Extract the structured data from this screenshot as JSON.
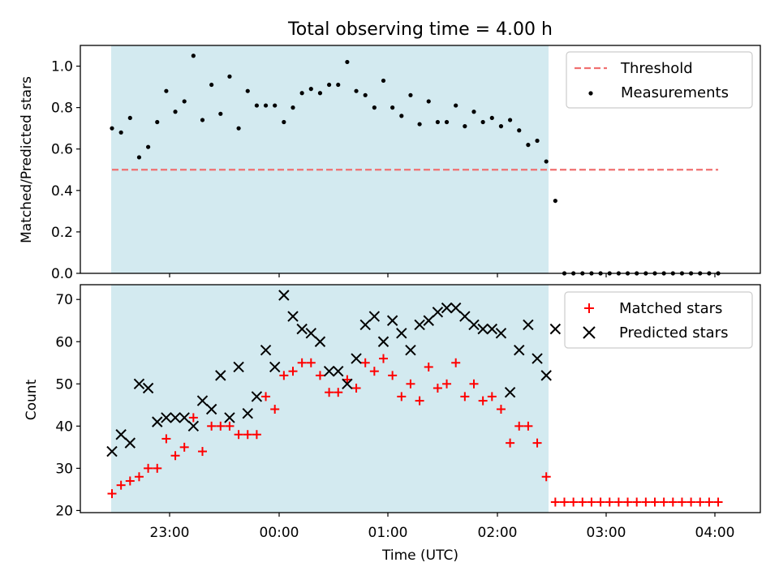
{
  "title": "Total observing time = 4.00 h",
  "shade_color": "#d3eaf0",
  "chart_data": [
    {
      "type": "scatter",
      "ylabel": "Matched/Predicted stars",
      "ylim": [
        0,
        1.1
      ],
      "yticks": [
        "0.0",
        "0.2",
        "0.4",
        "0.6",
        "0.8",
        "1.0"
      ],
      "threshold": {
        "name": "Threshold",
        "value": 0.5,
        "color": "#f07070",
        "style": "dashed"
      },
      "series": [
        {
          "name": "Measurements",
          "color": "#000000",
          "marker": "dot",
          "values": [
            0.7,
            0.68,
            0.75,
            0.56,
            0.61,
            0.73,
            0.88,
            0.78,
            0.83,
            1.05,
            0.74,
            0.91,
            0.77,
            0.95,
            0.7,
            0.88,
            0.81,
            0.81,
            0.81,
            0.73,
            0.8,
            0.87,
            0.89,
            0.87,
            0.91,
            0.91,
            1.02,
            0.88,
            0.86,
            0.8,
            0.93,
            0.8,
            0.76,
            0.86,
            0.72,
            0.83,
            0.73,
            0.73,
            0.81,
            0.71,
            0.78,
            0.73,
            0.75,
            0.71,
            0.74,
            0.69,
            0.62,
            0.64,
            0.54,
            0.35,
            0,
            0,
            0,
            0,
            0,
            0,
            0,
            0,
            0,
            0,
            0,
            0,
            0,
            0,
            0,
            0,
            0,
            0
          ]
        }
      ],
      "legend": "top-right"
    },
    {
      "type": "scatter",
      "xlabel": "Time (UTC)",
      "ylabel": "Count",
      "ylim": [
        19.5,
        73.5
      ],
      "yticks": [
        "20",
        "30",
        "40",
        "50",
        "60",
        "70"
      ],
      "xticks": [
        "23:00",
        "00:00",
        "01:00",
        "02:00",
        "03:00",
        "04:00"
      ],
      "series": [
        {
          "name": "Matched stars",
          "color": "#ff0000",
          "marker": "plus",
          "values": [
            24,
            26,
            27,
            28,
            30,
            30,
            37,
            33,
            35,
            42,
            34,
            40,
            40,
            40,
            38,
            38,
            38,
            47,
            44,
            52,
            53,
            55,
            55,
            52,
            48,
            48,
            51,
            49,
            55,
            53,
            56,
            52,
            47,
            50,
            46,
            54,
            49,
            50,
            55,
            47,
            50,
            46,
            47,
            44,
            36,
            40,
            40,
            36,
            28,
            22,
            22,
            22,
            22,
            22,
            22,
            22,
            22,
            22,
            22,
            22,
            22,
            22,
            22,
            22,
            22,
            22,
            22,
            22
          ]
        },
        {
          "name": "Predicted stars",
          "color": "#000000",
          "marker": "x",
          "values": [
            34,
            38,
            36,
            50,
            49,
            41,
            42,
            42,
            42,
            40,
            46,
            44,
            52,
            42,
            54,
            43,
            47,
            58,
            54,
            71,
            66,
            63,
            62,
            60,
            53,
            53,
            50,
            56,
            64,
            66,
            60,
            65,
            62,
            58,
            64,
            65,
            67,
            68,
            68,
            66,
            64,
            63,
            63,
            62,
            48,
            58,
            64,
            56,
            52,
            63
          ]
        }
      ],
      "legend": "top-right"
    }
  ]
}
